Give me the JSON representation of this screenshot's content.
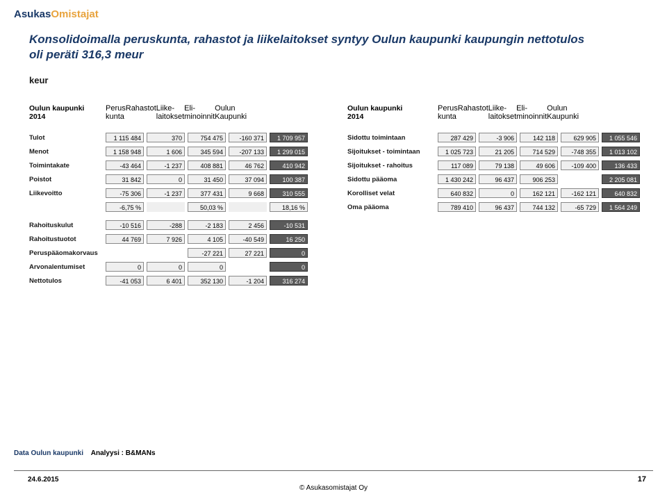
{
  "logo": {
    "part1": "Asukas",
    "part2": "Omistajat"
  },
  "title": "Konsolidoimalla peruskunta, rahastot ja liikelaitokset syntyy Oulun kaupunki kaupungin nettotulos oli peräti 316,3  meur",
  "keur": "keur",
  "headers": {
    "entity": "Oulun kaupunki",
    "year": "2014",
    "cols": [
      "Perus\nkunta",
      "Rahastot",
      "Liike-\nlaitokset",
      "Eli-\nminoinnit",
      "Oulun\nKaupunki"
    ]
  },
  "left": {
    "rows": [
      {
        "label": "Tulot",
        "cells": [
          "1 115 484",
          "370",
          "754 475",
          "-160 371",
          "1 709 957"
        ],
        "last_dark": true
      },
      {
        "label": "Menot",
        "cells": [
          "1 158 948",
          "1 606",
          "345 594",
          "-207 133",
          "1 299 015"
        ],
        "last_dark": true
      },
      {
        "label": "Toimintakate",
        "cells": [
          "-43 464",
          "-1 237",
          "408 881",
          "46 762",
          "410 942"
        ],
        "last_dark": true
      },
      {
        "label": "Poistot",
        "cells": [
          "31 842",
          "0",
          "31 450",
          "37 094",
          "100 387"
        ],
        "last_dark": true
      },
      {
        "label": "Liikevoitto",
        "cells": [
          "-75 306",
          "-1 237",
          "377 431",
          "9 668",
          "310 555"
        ],
        "last_dark": true
      }
    ],
    "pct_row": {
      "cells": [
        "-6,75 %",
        "",
        "50,03 %",
        "",
        "18,16 %"
      ]
    },
    "rows2": [
      {
        "label": "Rahoituskulut",
        "cells": [
          "-10 516",
          "-288",
          "-2 183",
          "2 456",
          "-10 531"
        ],
        "last_dark": true
      },
      {
        "label": "Rahoitustuotot",
        "cells": [
          "44 769",
          "7 926",
          "4 105",
          "-40 549",
          "16 250"
        ],
        "last_dark": true
      },
      {
        "label": "Peruspääomakorvaus",
        "cells": [
          "",
          "",
          "-27 221",
          "27 221",
          "0"
        ],
        "last_dark": true
      },
      {
        "label": "Arvonalentumiset",
        "cells": [
          "0",
          "0",
          "0",
          "",
          "0"
        ],
        "last_dark": true
      },
      {
        "label": "Nettotulos",
        "cells": [
          "-41 053",
          "6 401",
          "352 130",
          "-1 204",
          "316 274"
        ],
        "last_dark": true
      }
    ]
  },
  "right": {
    "rows": [
      {
        "label": "Sidottu toimintaan",
        "cells": [
          "287 429",
          "-3 906",
          "142 118",
          "629 905",
          "1 055 546"
        ],
        "last_dark": true
      },
      {
        "label": "Sijoitukset - toimintaan",
        "cells": [
          "1 025 723",
          "21 205",
          "714 529",
          "-748 355",
          "1 013 102"
        ],
        "last_dark": true
      },
      {
        "label": "Sijoitukset - rahoitus",
        "cells": [
          "117 089",
          "79 138",
          "49 606",
          "-109 400",
          "136 433"
        ],
        "last_dark": true
      },
      {
        "label": "Sidottu pääoma",
        "cells": [
          "1 430 242",
          "96 437",
          "906 253",
          "",
          "2 205 081"
        ],
        "last_dark": true
      },
      {
        "label": "Korolliset velat",
        "cells": [
          "640 832",
          "0",
          "162 121",
          "-162 121",
          "640 832"
        ],
        "last_dark": true
      },
      {
        "label": "Oma pääoma",
        "cells": [
          "789 410",
          "96 437",
          "744 132",
          "-65 729",
          "1 564 249"
        ],
        "last_dark": true
      }
    ]
  },
  "footer": {
    "data_src": "Data Oulun kaupunki",
    "analysis": "Analyysi : B&MANs",
    "date": "24.6.2015",
    "center": "© Asukasomistajat Oy",
    "page": "17"
  },
  "colors": {
    "brand_blue": "#1a3967",
    "brand_orange": "#e8a33d",
    "cell_grey": "#efefef",
    "cell_dark": "#5a5a5a"
  }
}
